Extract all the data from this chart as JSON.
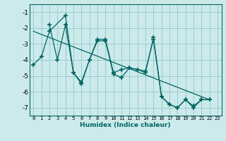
{
  "xlabel": "Humidex (Indice chaleur)",
  "bg_color": "#cceaea",
  "grid_color": "#99cccc",
  "line_color": "#006666",
  "xlim": [
    -0.5,
    23.5
  ],
  "ylim": [
    -7.5,
    -0.5
  ],
  "yticks": [
    -7,
    -6,
    -5,
    -4,
    -3,
    -2,
    -1
  ],
  "xticks": [
    0,
    1,
    2,
    3,
    4,
    5,
    6,
    7,
    8,
    9,
    10,
    11,
    12,
    13,
    14,
    15,
    16,
    17,
    18,
    19,
    20,
    21,
    22,
    23
  ],
  "series1_x": [
    0,
    1,
    2,
    4,
    5,
    6,
    7,
    8,
    9,
    10,
    11,
    12,
    13,
    14,
    15,
    16,
    17,
    18,
    19,
    20,
    21,
    22
  ],
  "series1_y": [
    -4.3,
    -3.8,
    -2.2,
    -1.2,
    -4.8,
    -5.5,
    -4.0,
    -2.7,
    -2.7,
    -4.8,
    -4.6,
    -4.5,
    -4.6,
    -4.8,
    -2.6,
    -6.3,
    -6.8,
    -7.0,
    -6.5,
    -6.9,
    -6.5,
    -6.5
  ],
  "series2_x": [
    2,
    3,
    4,
    5,
    6,
    7,
    8,
    9,
    10,
    11,
    12,
    13,
    14,
    15,
    16,
    17,
    18,
    19,
    20,
    21,
    22
  ],
  "series2_y": [
    -1.8,
    -4.0,
    -1.8,
    -4.8,
    -5.4,
    -4.0,
    -2.8,
    -2.8,
    -4.9,
    -5.1,
    -4.5,
    -4.6,
    -4.7,
    -2.7,
    -6.3,
    -6.8,
    -7.0,
    -6.5,
    -7.0,
    -6.5,
    -6.5
  ],
  "trend_x": [
    0,
    22
  ],
  "trend_y": [
    -2.2,
    -6.5
  ]
}
